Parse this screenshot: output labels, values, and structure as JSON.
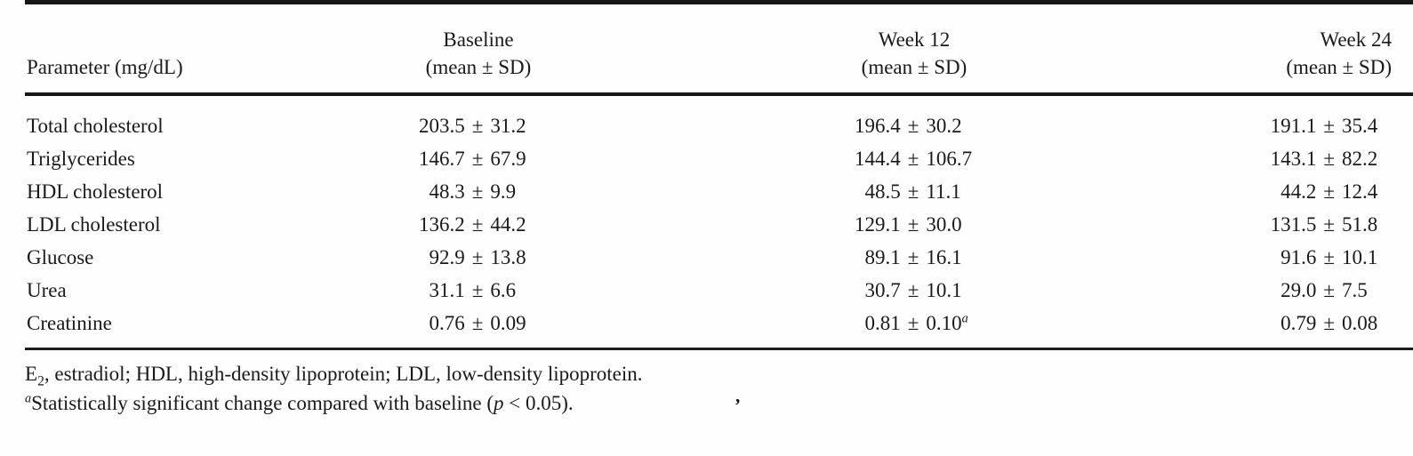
{
  "colors": {
    "ink": "#1a1a1a",
    "paper": "#fefefe"
  },
  "table": {
    "param_header": "Parameter (mg/dL)",
    "pm": "±",
    "columns": [
      {
        "line1": "Baseline",
        "line2": "(mean ± SD)"
      },
      {
        "line1": "Week 12",
        "line2": "(mean ± SD)"
      },
      {
        "line1": "Week 24",
        "line2": "(mean ± SD)"
      }
    ],
    "rows": [
      {
        "param": "Total cholesterol",
        "baseline_mean": "203.5",
        "baseline_sd": "31.2",
        "baseline_sup": "",
        "w12_mean": "196.4",
        "w12_sd": "30.2",
        "w12_sup": "",
        "w24_mean": "191.1",
        "w24_sd": "35.4",
        "w24_sup": ""
      },
      {
        "param": "Triglycerides",
        "baseline_mean": "146.7",
        "baseline_sd": "67.9",
        "baseline_sup": "",
        "w12_mean": "144.4",
        "w12_sd": "106.7",
        "w12_sup": "",
        "w24_mean": "143.1",
        "w24_sd": "82.2",
        "w24_sup": ""
      },
      {
        "param": "HDL cholesterol",
        "baseline_mean": "48.3",
        "baseline_sd": "9.9",
        "baseline_sup": "",
        "w12_mean": "48.5",
        "w12_sd": "11.1",
        "w12_sup": "",
        "w24_mean": "44.2",
        "w24_sd": "12.4",
        "w24_sup": ""
      },
      {
        "param": "LDL cholesterol",
        "baseline_mean": "136.2",
        "baseline_sd": "44.2",
        "baseline_sup": "",
        "w12_mean": "129.1",
        "w12_sd": "30.0",
        "w12_sup": "",
        "w24_mean": "131.5",
        "w24_sd": "51.8",
        "w24_sup": ""
      },
      {
        "param": "Glucose",
        "baseline_mean": "92.9",
        "baseline_sd": "13.8",
        "baseline_sup": "",
        "w12_mean": "89.1",
        "w12_sd": "16.1",
        "w12_sup": "",
        "w24_mean": "91.6",
        "w24_sd": "10.1",
        "w24_sup": ""
      },
      {
        "param": "Urea",
        "baseline_mean": "31.1",
        "baseline_sd": "6.6",
        "baseline_sup": "",
        "w12_mean": "30.7",
        "w12_sd": "10.1",
        "w12_sup": "",
        "w24_mean": "29.0",
        "w24_sd": "7.5",
        "w24_sup": ""
      },
      {
        "param": "Creatinine",
        "baseline_mean": "0.76",
        "baseline_sd": "0.09",
        "baseline_sup": "",
        "w12_mean": "0.81",
        "w12_sd": "0.10",
        "w12_sup": "a",
        "w24_mean": "0.79",
        "w24_sd": "0.08",
        "w24_sup": ""
      }
    ]
  },
  "footnotes": {
    "abbrev": {
      "pre": "E",
      "sub": "2",
      "rest": ", estradiol; HDL, high-density lipoprotein; LDL, low-density lipoprotein."
    },
    "significance": {
      "sup": "a",
      "before_p": "Statistically significant change compared with baseline (",
      "p": "p",
      "after_p": " < 0.05)."
    }
  },
  "artifacts": {
    "speck": "’"
  }
}
